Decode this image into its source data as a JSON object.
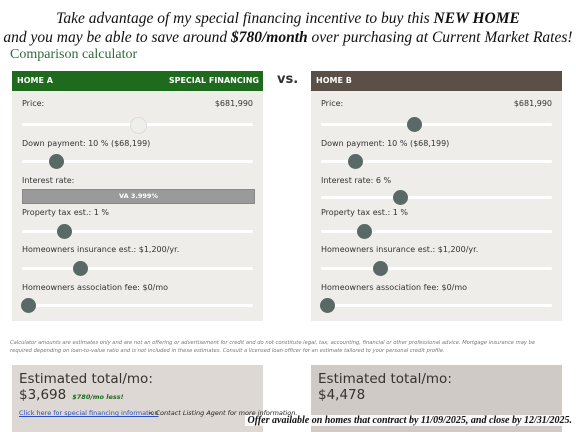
{
  "header": {
    "line1": [
      "Take advantage of my special financing incentive to buy this ",
      "NEW HOME"
    ],
    "line2": [
      "and you may be able to save around ",
      "$780/month",
      " over purchasing at Current Market Rates!"
    ],
    "subtitle": "Comparison calculator"
  },
  "vs": "vs.",
  "homes": [
    {
      "title": "HOME A",
      "badge": "SPECIAL FINANCING",
      "fields": [
        {
          "label": "Price:",
          "value": "$681,990"
        },
        {
          "label": "Down payment:",
          "value": "10 % ($68,199)"
        },
        {
          "label": "Interest rate:",
          "value": "VA 3.999%"
        },
        {
          "label": "Property tax est.:",
          "value": "1 %"
        },
        {
          "label": "Homeowners insurance est.:",
          "value": "$1,200/yr."
        },
        {
          "label": "Homeowners association fee:",
          "value": "$0/mo"
        }
      ],
      "estimate": {
        "label": "Estimated total/mo:",
        "amount": "$3,698",
        "savings": "$780/mo less!",
        "link": "Click here for special financing information",
        "note": "< Contact Listing Agent for more information."
      }
    },
    {
      "title": "HOME B",
      "fields": [
        {
          "label": "Price:",
          "value": "$681,990"
        },
        {
          "label": "Down payment:",
          "value": "10 % ($68,199)"
        },
        {
          "label": "Interest rate:",
          "value": "6 %"
        },
        {
          "label": "Property tax est.:",
          "value": "1 %"
        },
        {
          "label": "Homeowners insurance est.:",
          "value": "$1,200/yr."
        },
        {
          "label": "Homeowners association fee:",
          "value": "$0/mo"
        }
      ],
      "estimate": {
        "label": "Estimated total/mo:",
        "amount": "$4,478"
      }
    }
  ],
  "disclaimer": "Calculator amounts are estimates only and are not an offering or advertisement for credit and do not constitute legal, tax, accounting, financial or other professional advice. Mortgage insurance may be required depending on loan-to-value ratio and is not included in these estimates. Consult a licensed loan officer for an estimate tailored to your personal credit profile.",
  "footer": "Offer available on homes that contract by 11/09/2025, and close by 12/31/2025."
}
